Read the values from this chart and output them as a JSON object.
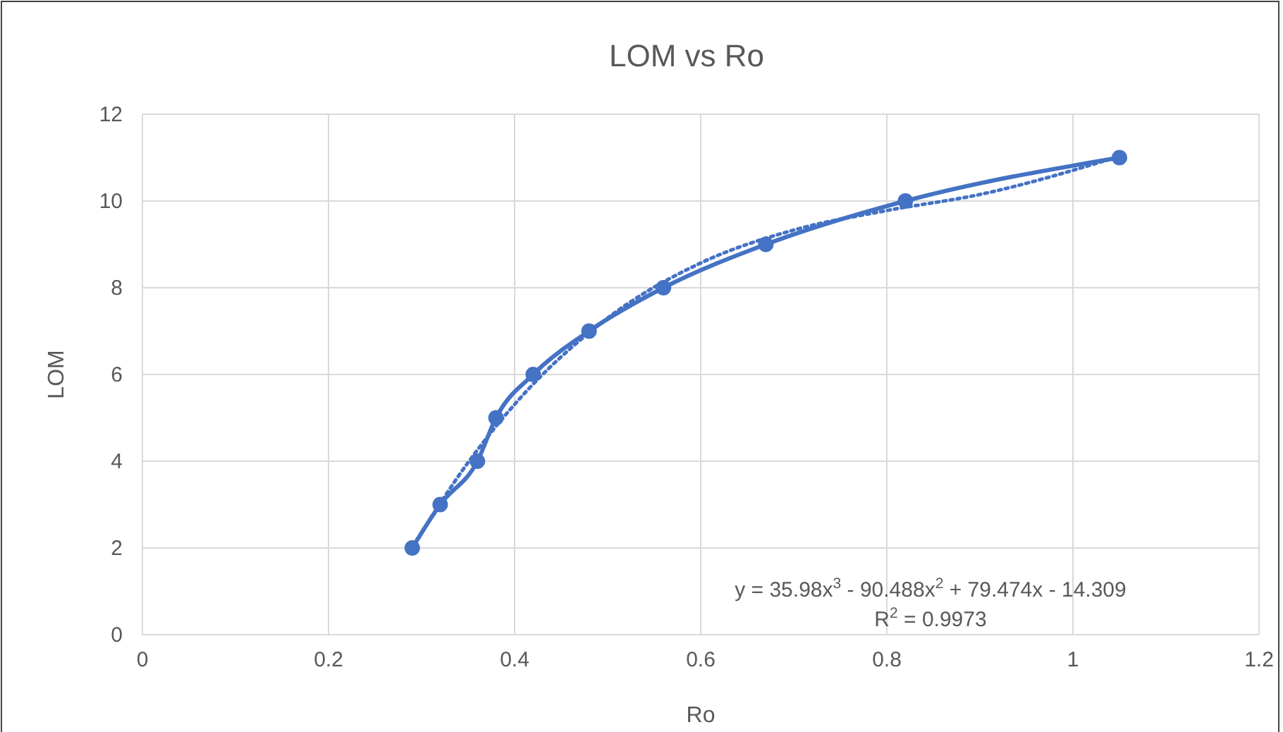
{
  "chart_data": {
    "type": "line",
    "title": "LOM vs Ro",
    "xlabel": "Ro",
    "ylabel": "LOM",
    "xlim": [
      0,
      1.2
    ],
    "xticks": [
      0,
      0.2,
      0.4,
      0.6,
      0.8,
      1,
      1.2
    ],
    "ylim": [
      0,
      12
    ],
    "yticks": [
      0,
      2,
      4,
      6,
      8,
      10,
      12
    ],
    "grid": true,
    "series": [
      {
        "color": "#4472c4",
        "marker": "circle",
        "line_style": "solid",
        "x": [
          0.29,
          0.32,
          0.36,
          0.38,
          0.42,
          0.48,
          0.56,
          0.67,
          0.82,
          1.05
        ],
        "values": [
          2,
          3,
          4,
          5,
          6,
          7,
          8,
          9,
          10,
          11
        ]
      },
      {
        "color": "#4472c4",
        "marker": "none",
        "line_style": "dotted",
        "x": [
          0.29,
          0.35,
          0.4,
          0.5,
          0.6,
          0.7,
          0.8,
          0.9,
          1.05
        ],
        "values": [
          2.01,
          3.97,
          5.31,
          7.3,
          8.57,
          9.33,
          9.78,
          10.15,
          11.03
        ]
      }
    ],
    "annotations": [
      "y = 35.98x$^{3}$ - 90.488x$^{2}$ + 79.474x - 14.309",
      "R$^{2}$ = 0.9973"
    ]
  }
}
